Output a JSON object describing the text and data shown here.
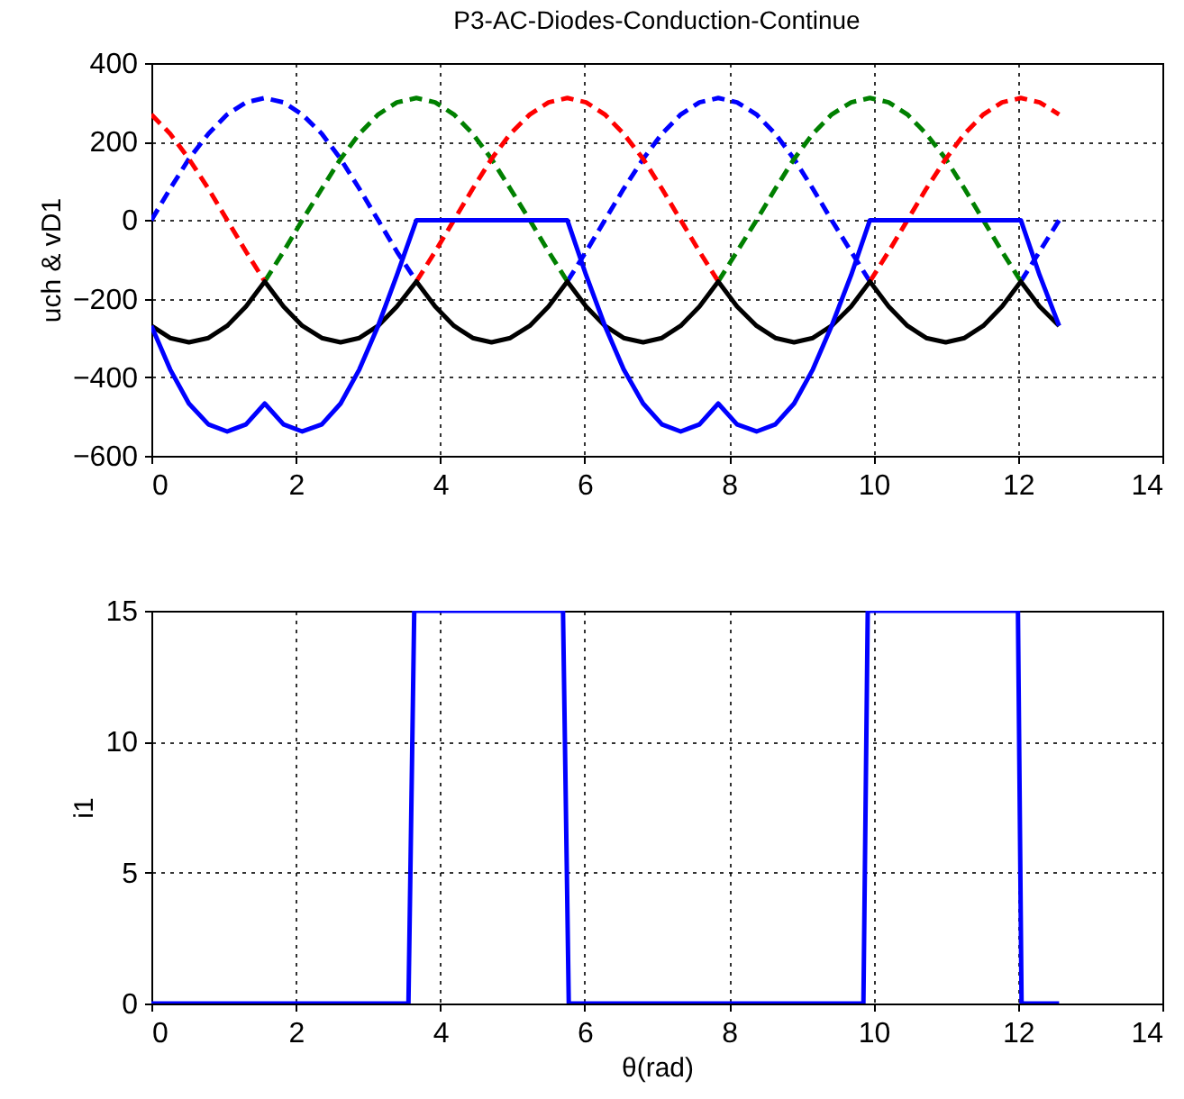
{
  "chart_data": [
    {
      "type": "line",
      "title": "P3-AC-Diodes-Conduction-Continue",
      "ylabel": "uch & vD1",
      "x": [
        0,
        0.26,
        0.52,
        0.79,
        1.05,
        1.31,
        1.57,
        1.83,
        2.09,
        2.36,
        2.62,
        2.88,
        3.14,
        3.4,
        3.67,
        3.93,
        4.19,
        4.45,
        4.71,
        4.97,
        5.24,
        5.5,
        5.76,
        6.02,
        6.28,
        6.54,
        6.81,
        7.07,
        7.33,
        7.59,
        7.85,
        8.11,
        8.38,
        8.64,
        8.9,
        9.16,
        9.42,
        9.69,
        9.95,
        10.21,
        10.47,
        10.73,
        11,
        11.26,
        11.52,
        11.78,
        12.04,
        12.3,
        12.57
      ],
      "series": [
        {
          "color": "#0000ff",
          "line_style": "dashed",
          "values": [
            0,
            80,
            156,
            220,
            269,
            300,
            311,
            300,
            269,
            220,
            156,
            80,
            0,
            -80,
            -156,
            null,
            null,
            null,
            null,
            null,
            null,
            null,
            -156,
            -80,
            0,
            80,
            156,
            220,
            269,
            300,
            311,
            300,
            269,
            220,
            156,
            80,
            0,
            -80,
            -156,
            null,
            null,
            null,
            null,
            null,
            null,
            null,
            -156,
            -80,
            0
          ]
        },
        {
          "color": "#008000",
          "line_style": "dashed",
          "values": [
            null,
            null,
            null,
            null,
            null,
            null,
            -156,
            -80,
            0,
            80,
            156,
            220,
            269,
            300,
            311,
            300,
            269,
            220,
            156,
            80,
            0,
            -80,
            -156,
            null,
            null,
            null,
            null,
            null,
            null,
            null,
            -156,
            -80,
            0,
            80,
            156,
            220,
            269,
            300,
            311,
            300,
            269,
            220,
            156,
            80,
            0,
            -80,
            -156,
            null,
            null
          ]
        },
        {
          "color": "#ff0000",
          "line_style": "dashed",
          "values": [
            269,
            220,
            156,
            80,
            0,
            -80,
            -156,
            null,
            null,
            null,
            null,
            null,
            null,
            null,
            -156,
            -80,
            0,
            80,
            156,
            220,
            269,
            300,
            311,
            300,
            269,
            220,
            156,
            80,
            0,
            -80,
            -156,
            null,
            null,
            null,
            null,
            null,
            null,
            null,
            -156,
            -80,
            0,
            80,
            156,
            220,
            269,
            300,
            311,
            300,
            269
          ]
        },
        {
          "color": "#000000",
          "line_style": "solid",
          "values": [
            -269,
            -300,
            -311,
            -300,
            -269,
            -220,
            -156,
            -220,
            -269,
            -300,
            -311,
            -300,
            -269,
            -220,
            -156,
            -220,
            -269,
            -300,
            -311,
            -300,
            -269,
            -220,
            -156,
            -220,
            -269,
            -300,
            -311,
            -300,
            -269,
            -220,
            -156,
            -220,
            -269,
            -300,
            -311,
            -300,
            -269,
            -220,
            -156,
            -220,
            -269,
            -300,
            -311,
            -300,
            -269,
            -220,
            -156,
            -220,
            -269
          ]
        },
        {
          "color": "#0000ff",
          "line_style": "solid",
          "values": [
            -269,
            -380,
            -467,
            -520,
            -538,
            -520,
            -467,
            -520,
            -538,
            -520,
            -467,
            -380,
            -269,
            -140,
            0,
            0,
            0,
            0,
            0,
            0,
            0,
            0,
            0,
            -140,
            -269,
            -380,
            -467,
            -520,
            -538,
            -520,
            -467,
            -520,
            -538,
            -520,
            -467,
            -380,
            -269,
            -140,
            0,
            0,
            0,
            0,
            0,
            0,
            0,
            0,
            0,
            -140,
            -269
          ]
        }
      ],
      "xlim": [
        0,
        14
      ],
      "xticks": [
        0,
        2,
        4,
        6,
        8,
        10,
        12,
        14
      ],
      "ylim": [
        -600,
        400
      ],
      "yticks": [
        -600,
        -400,
        -200,
        0,
        200,
        400
      ],
      "grid": true,
      "legend": false
    },
    {
      "type": "line",
      "xlabel": "θ(rad)",
      "ylabel": "i1",
      "x": [
        0,
        3.56,
        3.64,
        5.7,
        5.78,
        9.86,
        9.92,
        12.0,
        12.05,
        12.57
      ],
      "series": [
        {
          "color": "#0000ff",
          "line_style": "solid",
          "values": [
            0,
            0,
            15,
            15,
            0,
            0,
            15,
            15,
            0,
            0
          ]
        }
      ],
      "xlim": [
        0,
        14
      ],
      "xticks": [
        0,
        2,
        4,
        6,
        8,
        10,
        12,
        14
      ],
      "ylim": [
        0,
        15
      ],
      "yticks": [
        0,
        5,
        10,
        15
      ],
      "grid": true,
      "legend": false
    }
  ]
}
